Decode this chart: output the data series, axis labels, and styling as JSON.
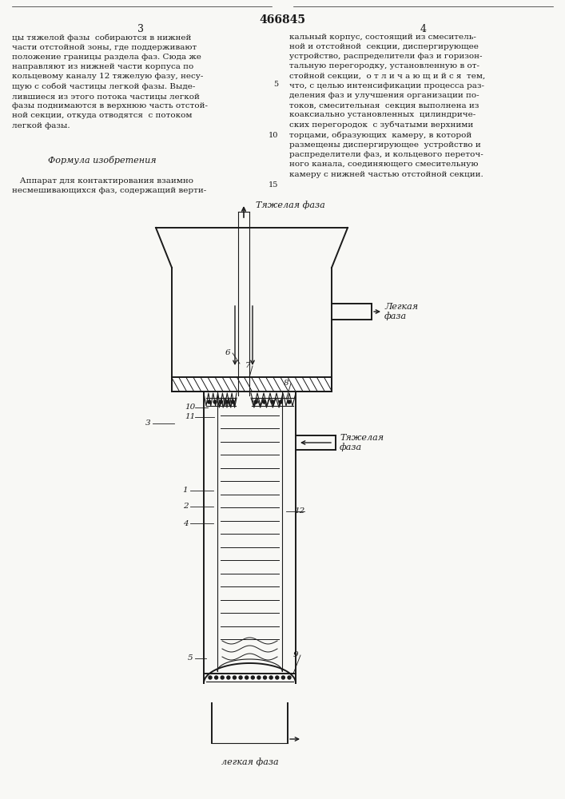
{
  "page_title": "466845",
  "page_num_left": "3",
  "page_num_right": "4",
  "bg_color": "#f8f8f5",
  "line_color": "#1a1a1a",
  "left_text": "цы тяжелой фазы  собираются в нижней\nчасти отстойной зоны, где поддерживают\nположение границы раздела фаз. Сюда же\nнаправляют из нижней части корпуса по\nкольцевому каналу 12 тяжелую фазу, несу-\nщую с собой частицы легкой фазы. Выде-\nлившиеся из этого потока частицы легкой\nфазы поднимаются в верхнюю часть отстой-\nной секции, откуда отводятся  с потоком\nлегкой фазы.",
  "formula_title": "Формула изобретения",
  "formula_text": "   Аппарат для контактирования взаимно\nнесмешивающихся фаз, содержащий верти-",
  "right_text": "кальный корпус, состоящий из смеситель-\nной и отстойной  секции, диспергирующее\nустройство, распределители фаз и горизон-\nтальную перегородку, установленную в от-\nстойной секции,  о т л и ч а ю щ и й с я  тем,\nчто, с целью интенсификации процесса раз-\nделения фаз и улучшения организации по-\nтоков, смесительная  секция выполнена из\nкоаксиально установленных  цилиндриче-\nских перегородок  с зубчатыми верхними\nторцами, образующих  камеру, в которой\nразмещены диспергирующее  устройство и\nраспределители фаз, и кольцевого переточ-\nного канала, соединяющего смесительную\nкамеру с нижней частью отстойной секции.",
  "label_tyazh_top": "Тяжелая фаза",
  "label_legk_right": "Легкая\nфаза",
  "label_tyazh_right": "Тяжелая\nфаза",
  "label_legk_bottom": "легкая фаза",
  "linenum_5": "5",
  "linenum_10": "10",
  "linenum_15": "15"
}
